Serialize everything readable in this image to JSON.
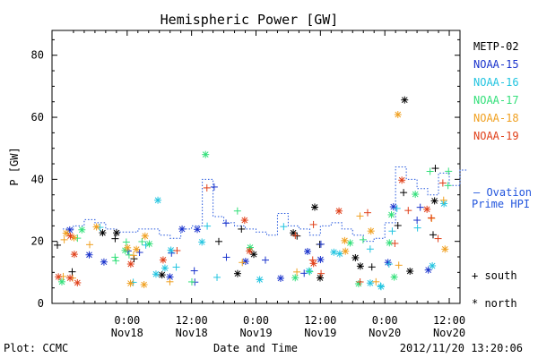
{
  "chart_data": {
    "type": "scatter",
    "title": "Hemispheric Power [GW]",
    "ylabel": "P [GW]",
    "xlabel": "Date and Time",
    "ylim": [
      0,
      88
    ],
    "xlim_hours": [
      -14,
      62
    ],
    "yticks": [
      0,
      20,
      40,
      60,
      80
    ],
    "xticks": [
      {
        "h": 0,
        "time": "0:00",
        "date": "Nov18"
      },
      {
        "h": 12,
        "time": "12:00",
        "date": "Nov18"
      },
      {
        "h": 24,
        "time": "0:00",
        "date": "Nov19"
      },
      {
        "h": 36,
        "time": "12:00",
        "date": "Nov19"
      },
      {
        "h": 48,
        "time": "0:00",
        "date": "Nov20"
      },
      {
        "h": 60,
        "time": "12:00",
        "date": "Nov20"
      }
    ],
    "series": [
      {
        "name": "METP-02",
        "color": "#000000"
      },
      {
        "name": "NOAA-15",
        "color": "#1a33cc"
      },
      {
        "name": "NOAA-16",
        "color": "#22c4e0"
      },
      {
        "name": "NOAA-17",
        "color": "#33e07a"
      },
      {
        "name": "NOAA-18",
        "color": "#f0a020"
      },
      {
        "name": "NOAA-19",
        "color": "#e0401a"
      }
    ],
    "ovation": {
      "label_line1": "— Ovation",
      "label_line2": "Prime HPI",
      "color": "#2255dd",
      "values": [
        [
          -12,
          24
        ],
        [
          -10,
          25
        ],
        [
          -8,
          27
        ],
        [
          -6,
          26
        ],
        [
          -4,
          24
        ],
        [
          -2,
          23
        ],
        [
          0,
          23
        ],
        [
          2,
          24
        ],
        [
          4,
          24
        ],
        [
          6,
          22
        ],
        [
          8,
          21
        ],
        [
          10,
          24
        ],
        [
          12,
          25
        ],
        [
          14,
          40
        ],
        [
          16,
          28
        ],
        [
          18,
          26
        ],
        [
          20,
          25
        ],
        [
          22,
          24
        ],
        [
          24,
          23
        ],
        [
          26,
          22
        ],
        [
          28,
          29
        ],
        [
          30,
          25
        ],
        [
          32,
          24
        ],
        [
          34,
          22
        ],
        [
          36,
          25
        ],
        [
          38,
          26
        ],
        [
          40,
          24
        ],
        [
          42,
          22
        ],
        [
          44,
          20
        ],
        [
          46,
          21
        ],
        [
          48,
          26
        ],
        [
          50,
          44
        ],
        [
          52,
          40
        ],
        [
          54,
          37
        ],
        [
          56,
          35
        ],
        [
          58,
          42
        ],
        [
          60,
          38
        ],
        [
          62,
          43
        ]
      ]
    },
    "symbol_legend": [
      {
        "symbol": "+",
        "label": "south"
      },
      {
        "symbol": "*",
        "label": "north"
      }
    ],
    "notes": {
      "left": "Plot: CCMC",
      "right": "2012/11/20 13:20:06"
    }
  }
}
